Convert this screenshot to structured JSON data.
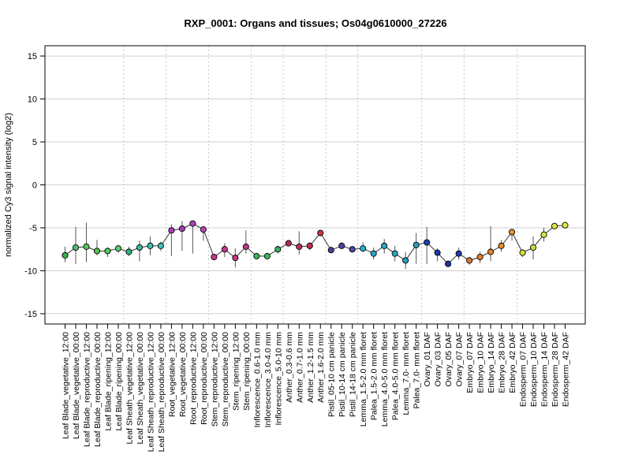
{
  "chart_data": {
    "type": "line",
    "title": "RXP_0001: Organs and tissues; Os04g0610000_27226",
    "ylabel": "normalized Cy3 signal intensity (log2)",
    "xlabel": "",
    "ylim": [
      -16.2,
      16.2
    ],
    "yticks": [
      -15,
      -10,
      -5,
      0,
      5,
      10,
      15
    ],
    "grid": true,
    "categories": [
      "Leaf Blade_vegetative_12:00",
      "Leaf Blade_vegetative_00:00",
      "Leaf Blade_reproductive_12:00",
      "Leaf Blade_reproductive_00:00",
      "Leaf Blade_ripening_12:00",
      "Leaf Blade_ripening_00:00",
      "Leaf Sheath_vegetative_12:00",
      "Leaf Sheath_vegetative_00:00",
      "Leaf Sheath_reproductive_12:00",
      "Leaf Sheath_reproductive_00:00",
      "Root_vegetative_12:00",
      "Root_vegetative_00:00",
      "Root_reproductive_12:00",
      "Root_reproductive_00:00",
      "Stem_reproductive_12:00",
      "Stem_reproductive_00:00",
      "Stem_ripening_12:00",
      "Stem_ripening_00:00",
      "Inflorescence_0.6-1.0 mm",
      "Inflorescence_3.0-4.0 mm",
      "Inflorescence_5.0-10 mm",
      "Anther_0.3-0.6 mm",
      "Anther_0.7-1.0 mm",
      "Anther_1.2-1.5 mm",
      "Anther_1.6-2.0 mm",
      "Pistil_05-10 cm panicle",
      "Pistil_10-14 cm panicle",
      "Pistil_14-18 cm panicle",
      "Lemma_1.5-2.0 mm floret",
      "Palea_1.5-2.0 mm floret",
      "Lemma_4.0-5.0 mm floret",
      "Palea_4.0-5.0 mm floret",
      "Lemma_7.0- mm floret",
      "Palea_7.0- mm floret",
      "Ovary_01 DAF",
      "Ovary_03 DAF",
      "Ovary_05 DAF",
      "Ovary_07 DAF",
      "Embryo_07 DAF",
      "Embryo_10 DAF",
      "Embryo_14 DAF",
      "Embryo_28 DAF",
      "Embryo_42 DAF",
      "Endosperm_07 DAF",
      "Endosperm_10 DAF",
      "Endosperm_14 DAF",
      "Endosperm_28 DAF",
      "Endosperm_42 DAF"
    ],
    "values": [
      -8.2,
      -7.3,
      -7.2,
      -7.7,
      -7.7,
      -7.4,
      -7.8,
      -7.3,
      -7.1,
      -7.1,
      -5.3,
      -5.1,
      -4.5,
      -5.2,
      -8.4,
      -7.5,
      -8.5,
      -7.2,
      -8.3,
      -8.3,
      -7.5,
      -6.8,
      -7.2,
      -7.1,
      -5.6,
      -7.6,
      -7.1,
      -7.5,
      -7.4,
      -8.0,
      -7.1,
      -8.0,
      -8.8,
      -7.0,
      -6.7,
      -7.9,
      -9.2,
      -8.0,
      -8.8,
      -8.4,
      -7.8,
      -7.1,
      -5.5,
      -7.9,
      -7.3,
      -5.8,
      -4.8,
      -4.7
    ],
    "err_low": [
      -9.0,
      -9.2,
      -9.0,
      -8.2,
      -8.4,
      -7.9,
      -8.3,
      -8.9,
      -8.2,
      -7.7,
      -8.3,
      -7.7,
      -8.0,
      -6.5,
      -8.6,
      -8.4,
      -9.6,
      -8.0,
      -8.6,
      -8.5,
      -8.0,
      -7.1,
      -8.1,
      -7.6,
      -6.0,
      -7.9,
      -7.4,
      -7.8,
      -7.8,
      -8.7,
      -8.0,
      -8.9,
      -9.8,
      -9.2,
      -9.2,
      -8.9,
      -9.5,
      -8.7,
      -9.3,
      -9.1,
      -8.9,
      -7.8,
      -6.5,
      -8.4,
      -8.7,
      -6.6,
      -5.1,
      -5.0
    ],
    "err_high": [
      -7.2,
      -4.9,
      -4.4,
      -6.4,
      -7.3,
      -7.0,
      -7.2,
      -6.5,
      -6.0,
      -6.6,
      -4.6,
      -4.2,
      -4.2,
      -4.8,
      -8.2,
      -6.8,
      -7.4,
      -5.3,
      -8.0,
      -8.0,
      -7.1,
      -6.6,
      -5.4,
      -6.7,
      -5.3,
      -7.2,
      -6.7,
      -7.2,
      -6.7,
      -7.3,
      -6.3,
      -7.1,
      -7.8,
      -5.6,
      -4.9,
      -7.4,
      -9.0,
      -7.3,
      -8.4,
      -7.8,
      -4.8,
      -6.4,
      -5.2,
      -7.5,
      -6.0,
      -5.0,
      -4.5,
      -4.3
    ],
    "group_sizes": [
      6,
      4,
      4,
      4,
      3,
      4,
      3,
      6,
      4,
      5,
      5
    ],
    "colors": [
      "#38b44a",
      "#4cc06a",
      "#58c85c",
      "#54c24c",
      "#56c854",
      "#5dc96e",
      "#2fb37f",
      "#36b8a2",
      "#40bfac",
      "#42c1b4",
      "#b03ab8",
      "#a43db5",
      "#ad42b8",
      "#b547bb",
      "#c0378c",
      "#c43a91",
      "#c6348a",
      "#b7388b",
      "#32b556",
      "#3ab65c",
      "#35b35b",
      "#b42d57",
      "#bd2f55",
      "#c02f4e",
      "#c9343f",
      "#4b3f9c",
      "#4a45a4",
      "#5045a3",
      "#27b1cc",
      "#26a8c9",
      "#29a8c6",
      "#2ba6c2",
      "#2c9dc0",
      "#2c99bd",
      "#1f3fb0",
      "#1f37a8",
      "#1e34a4",
      "#2139a6",
      "#e0762d",
      "#e37c31",
      "#e5812b",
      "#e78a2a",
      "#e58f27",
      "#d2e03a",
      "#c9dd37",
      "#d7e63d",
      "#dfe83d",
      "#e4e941"
    ]
  }
}
